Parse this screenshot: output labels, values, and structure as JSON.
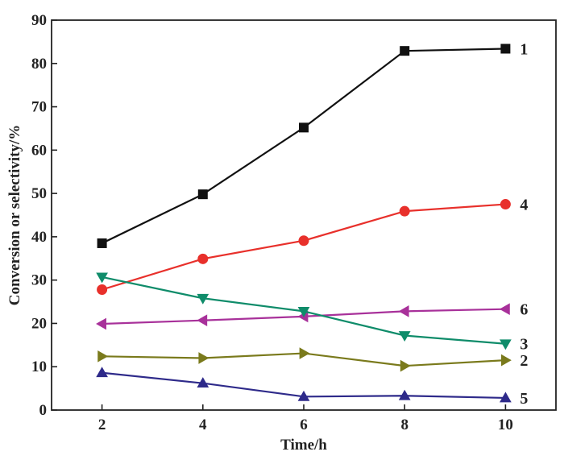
{
  "chart_data": {
    "type": "line",
    "title": "",
    "xlabel": "Time/h",
    "ylabel": "Conversion or selectivity/%",
    "x": [
      2,
      4,
      6,
      8,
      10
    ],
    "xlim": [
      1,
      11
    ],
    "ylim": [
      0,
      90
    ],
    "xticks": [
      2,
      4,
      6,
      8,
      10
    ],
    "yticks": [
      0,
      10,
      20,
      30,
      40,
      50,
      60,
      70,
      80,
      90
    ],
    "grid": false,
    "legend": "none",
    "series": [
      {
        "name": "1",
        "label": "1",
        "color": "#111111",
        "marker": "square",
        "values": [
          38.5,
          49.8,
          65.2,
          82.9,
          83.4
        ]
      },
      {
        "name": "4",
        "label": "4",
        "color": "#e8302b",
        "marker": "circle",
        "values": [
          27.8,
          34.9,
          39.1,
          45.9,
          47.5
        ]
      },
      {
        "name": "6",
        "label": "6",
        "color": "#a8319a",
        "marker": "triangle-left",
        "values": [
          19.9,
          20.7,
          21.6,
          22.8,
          23.3
        ]
      },
      {
        "name": "3",
        "label": "3",
        "color": "#0f8c6a",
        "marker": "triangle-down",
        "values": [
          30.7,
          25.8,
          22.8,
          17.2,
          15.3
        ]
      },
      {
        "name": "2",
        "label": "2",
        "color": "#7a7a1c",
        "marker": "triangle-right",
        "values": [
          12.4,
          12.0,
          13.1,
          10.2,
          11.5
        ]
      },
      {
        "name": "5",
        "label": "5",
        "color": "#2e2a8a",
        "marker": "triangle-up",
        "values": [
          8.6,
          6.2,
          3.1,
          3.3,
          2.8
        ]
      }
    ]
  }
}
